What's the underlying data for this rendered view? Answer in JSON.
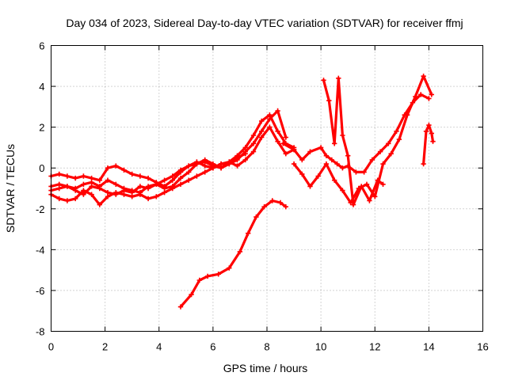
{
  "chart_data": {
    "type": "scatter",
    "marker": "plus",
    "title": "Day 034 of 2023, Sidereal Day-to-day VTEC variation (SDTVAR) for receiver ffmj",
    "xlabel": "GPS time / hours",
    "ylabel": "SDTVAR / TECUs",
    "xlim": [
      0,
      16
    ],
    "ylim": [
      -8,
      6
    ],
    "xticks": [
      0,
      2,
      4,
      6,
      8,
      10,
      12,
      14,
      16
    ],
    "yticks": [
      -8,
      -6,
      -4,
      -2,
      0,
      2,
      4,
      6
    ],
    "grid": true,
    "legend": "none",
    "color": "#ff0000",
    "series": [
      {
        "x": [
          0,
          0.3,
          0.6,
          0.9,
          1.2,
          1.5,
          1.8,
          2.1,
          2.4,
          2.7,
          3.0,
          3.3,
          3.6,
          3.9,
          4.2,
          4.5,
          4.8,
          5.1,
          5.4,
          5.7,
          6.0,
          6.3,
          6.6,
          6.9,
          7.2,
          7.5,
          7.8,
          8.1,
          8.4,
          8.7,
          9.0
        ],
        "y": [
          -0.4,
          -0.3,
          -0.4,
          -0.5,
          -0.4,
          -0.5,
          -0.6,
          0.0,
          0.1,
          -0.1,
          -0.3,
          -0.4,
          -0.5,
          -0.7,
          -0.9,
          -0.6,
          -0.2,
          0.1,
          0.3,
          0.1,
          0.0,
          0.2,
          0.3,
          0.1,
          0.4,
          0.8,
          1.5,
          2.0,
          1.3,
          0.7,
          0.9
        ]
      },
      {
        "x": [
          0,
          0.3,
          0.6,
          0.9,
          1.2,
          1.5,
          1.8,
          2.1,
          2.4,
          2.7,
          3.0,
          3.3,
          3.6,
          3.9,
          4.2,
          4.5,
          4.8,
          5.1,
          5.4,
          5.7,
          6.0,
          6.3,
          6.6,
          6.9,
          7.2,
          7.5,
          7.8,
          8.1,
          8.4,
          8.7,
          9.0
        ],
        "y": [
          -0.9,
          -0.8,
          -0.9,
          -1.0,
          -0.8,
          -0.7,
          -0.9,
          -0.6,
          -0.8,
          -1.0,
          -1.1,
          -1.2,
          -0.9,
          -0.8,
          -1.0,
          -0.9,
          -0.5,
          -0.2,
          0.2,
          0.4,
          0.2,
          0.0,
          0.3,
          0.6,
          1.0,
          1.6,
          2.3,
          2.6,
          1.8,
          1.2,
          1.0
        ]
      },
      {
        "x": [
          0,
          0.3,
          0.6,
          0.9,
          1.2,
          1.5,
          1.8,
          2.1,
          2.4,
          2.7,
          3.0,
          3.3,
          3.6,
          3.9,
          4.2,
          4.5,
          4.8,
          5.1,
          5.4,
          5.7,
          6.0,
          6.3,
          6.6,
          6.9,
          7.2,
          7.5,
          7.8,
          8.1,
          8.4,
          8.7
        ],
        "y": [
          -1.3,
          -1.5,
          -1.6,
          -1.5,
          -1.1,
          -1.3,
          -1.8,
          -1.4,
          -1.2,
          -1.3,
          -1.4,
          -1.3,
          -1.5,
          -1.4,
          -1.2,
          -1.0,
          -0.8,
          -0.6,
          -0.4,
          -0.2,
          0.0,
          0.2,
          0.2,
          0.4,
          0.8,
          1.2,
          1.8,
          2.4,
          2.8,
          1.5
        ]
      },
      {
        "x": [
          0,
          0.3,
          0.6,
          0.9,
          1.2,
          1.5,
          1.8,
          2.1,
          2.4,
          2.7,
          3.0,
          3.3,
          3.6,
          3.9,
          4.2,
          4.5,
          4.8,
          5.1,
          5.4,
          5.7,
          6.0,
          6.3,
          6.6,
          6.9,
          7.2
        ],
        "y": [
          -1.1,
          -1.0,
          -0.9,
          -1.1,
          -1.3,
          -0.9,
          -1.0,
          -1.2,
          -1.3,
          -1.1,
          -1.2,
          -0.9,
          -1.0,
          -0.8,
          -0.6,
          -0.4,
          -0.1,
          0.1,
          0.2,
          0.3,
          0.1,
          0.0,
          0.2,
          0.5,
          0.7
        ]
      },
      {
        "x": [
          4.8,
          5.2,
          5.5,
          5.8,
          6.2,
          6.6,
          7.0,
          7.3,
          7.6,
          7.9,
          8.2,
          8.5,
          8.7
        ],
        "y": [
          -6.8,
          -6.2,
          -5.5,
          -5.3,
          -5.2,
          -4.9,
          -4.1,
          -3.2,
          -2.4,
          -1.9,
          -1.6,
          -1.7,
          -1.9
        ]
      },
      {
        "x": [
          8.6,
          9.0,
          9.3,
          9.6,
          10.0,
          10.2,
          10.4,
          10.6,
          10.8,
          11.0,
          11.3,
          11.6,
          11.9,
          12.2,
          12.5,
          12.8,
          13.1,
          13.4,
          13.7,
          14.0
        ],
        "y": [
          1.2,
          0.9,
          0.4,
          0.8,
          1.0,
          0.6,
          0.4,
          0.2,
          0.0,
          0.1,
          -0.2,
          -0.2,
          0.4,
          0.8,
          1.2,
          1.8,
          2.6,
          3.2,
          3.6,
          3.4
        ]
      },
      {
        "x": [
          9.0,
          9.3,
          9.6,
          9.9,
          10.2,
          10.5,
          10.8,
          11.1,
          11.4,
          11.7,
          12.0,
          12.3,
          12.6,
          12.9,
          13.2,
          13.5,
          13.8,
          14.1
        ],
        "y": [
          0.2,
          -0.3,
          -0.9,
          -0.4,
          0.2,
          -0.6,
          -1.1,
          -1.7,
          -1.0,
          -0.8,
          -1.4,
          0.2,
          0.7,
          1.4,
          2.6,
          3.5,
          4.5,
          3.6
        ]
      },
      {
        "x": [
          10.1,
          10.3,
          10.5,
          10.65,
          10.8,
          11.0,
          11.2,
          11.5,
          11.8,
          12.1,
          12.3
        ],
        "y": [
          4.3,
          3.3,
          1.2,
          4.4,
          1.6,
          0.6,
          -1.8,
          -0.9,
          -1.6,
          -0.6,
          -0.8
        ]
      },
      {
        "x": [
          13.8,
          13.9,
          14.0,
          14.1,
          14.15
        ],
        "y": [
          0.2,
          1.8,
          2.1,
          1.7,
          1.3
        ]
      }
    ]
  }
}
